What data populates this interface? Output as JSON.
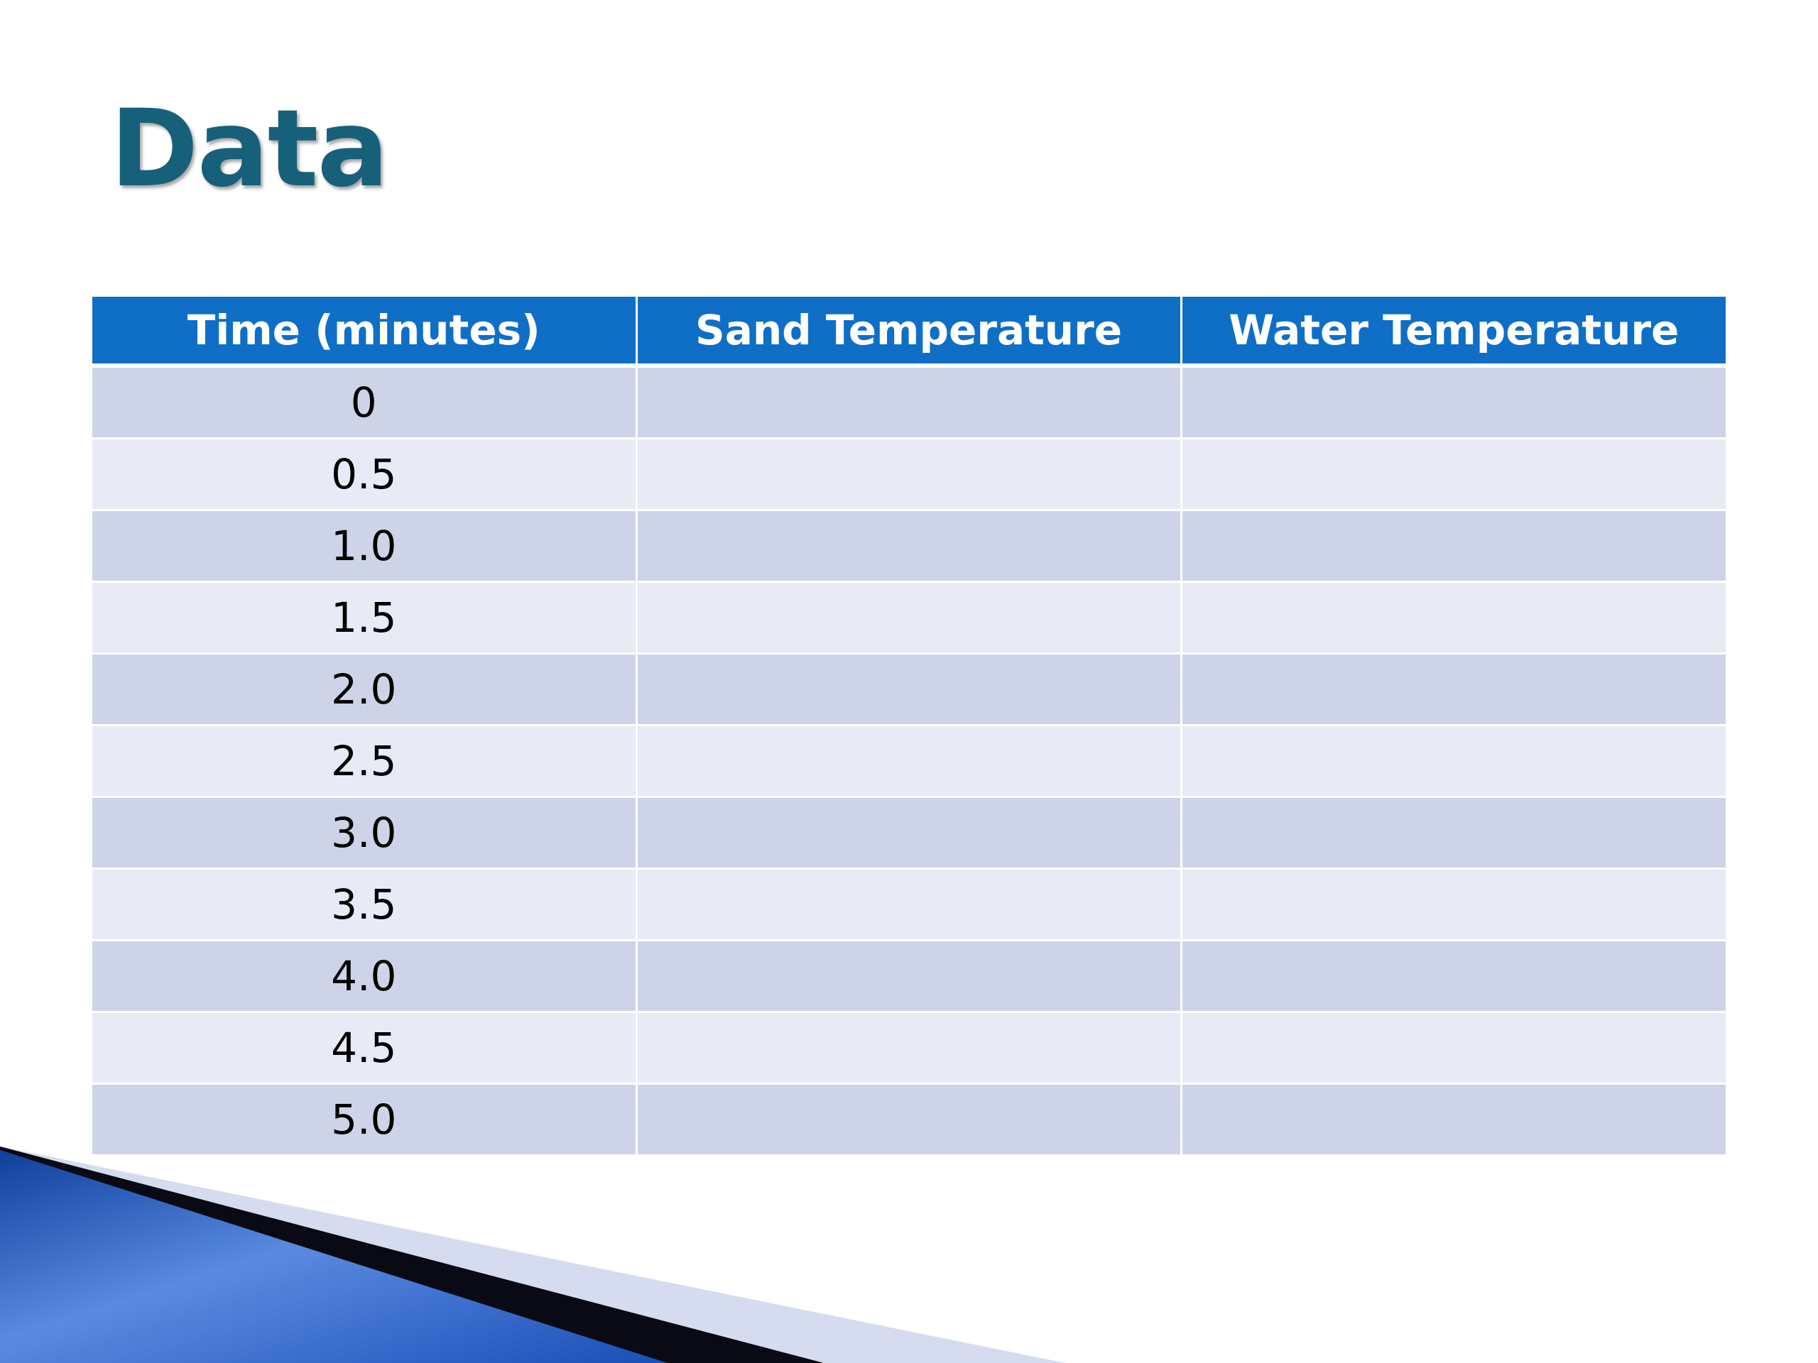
{
  "slide": {
    "title": "Data"
  },
  "table": {
    "headers": [
      "Time (minutes)",
      "Sand Temperature",
      "Water Temperature"
    ],
    "rows": [
      [
        "0",
        "",
        ""
      ],
      [
        "0.5",
        "",
        ""
      ],
      [
        "1.0",
        "",
        ""
      ],
      [
        "1.5",
        "",
        ""
      ],
      [
        "2.0",
        "",
        ""
      ],
      [
        "2.5",
        "",
        ""
      ],
      [
        "3.0",
        "",
        ""
      ],
      [
        "3.5",
        "",
        ""
      ],
      [
        "4.0",
        "",
        ""
      ],
      [
        "4.5",
        "",
        ""
      ],
      [
        "5.0",
        "",
        ""
      ]
    ]
  },
  "colors": {
    "title": "#17607a",
    "header_background": "#0f6fc6",
    "row_dark": "#cdd4e8",
    "row_light": "#e8ebf5",
    "accent_blue": "#2f66d0"
  }
}
